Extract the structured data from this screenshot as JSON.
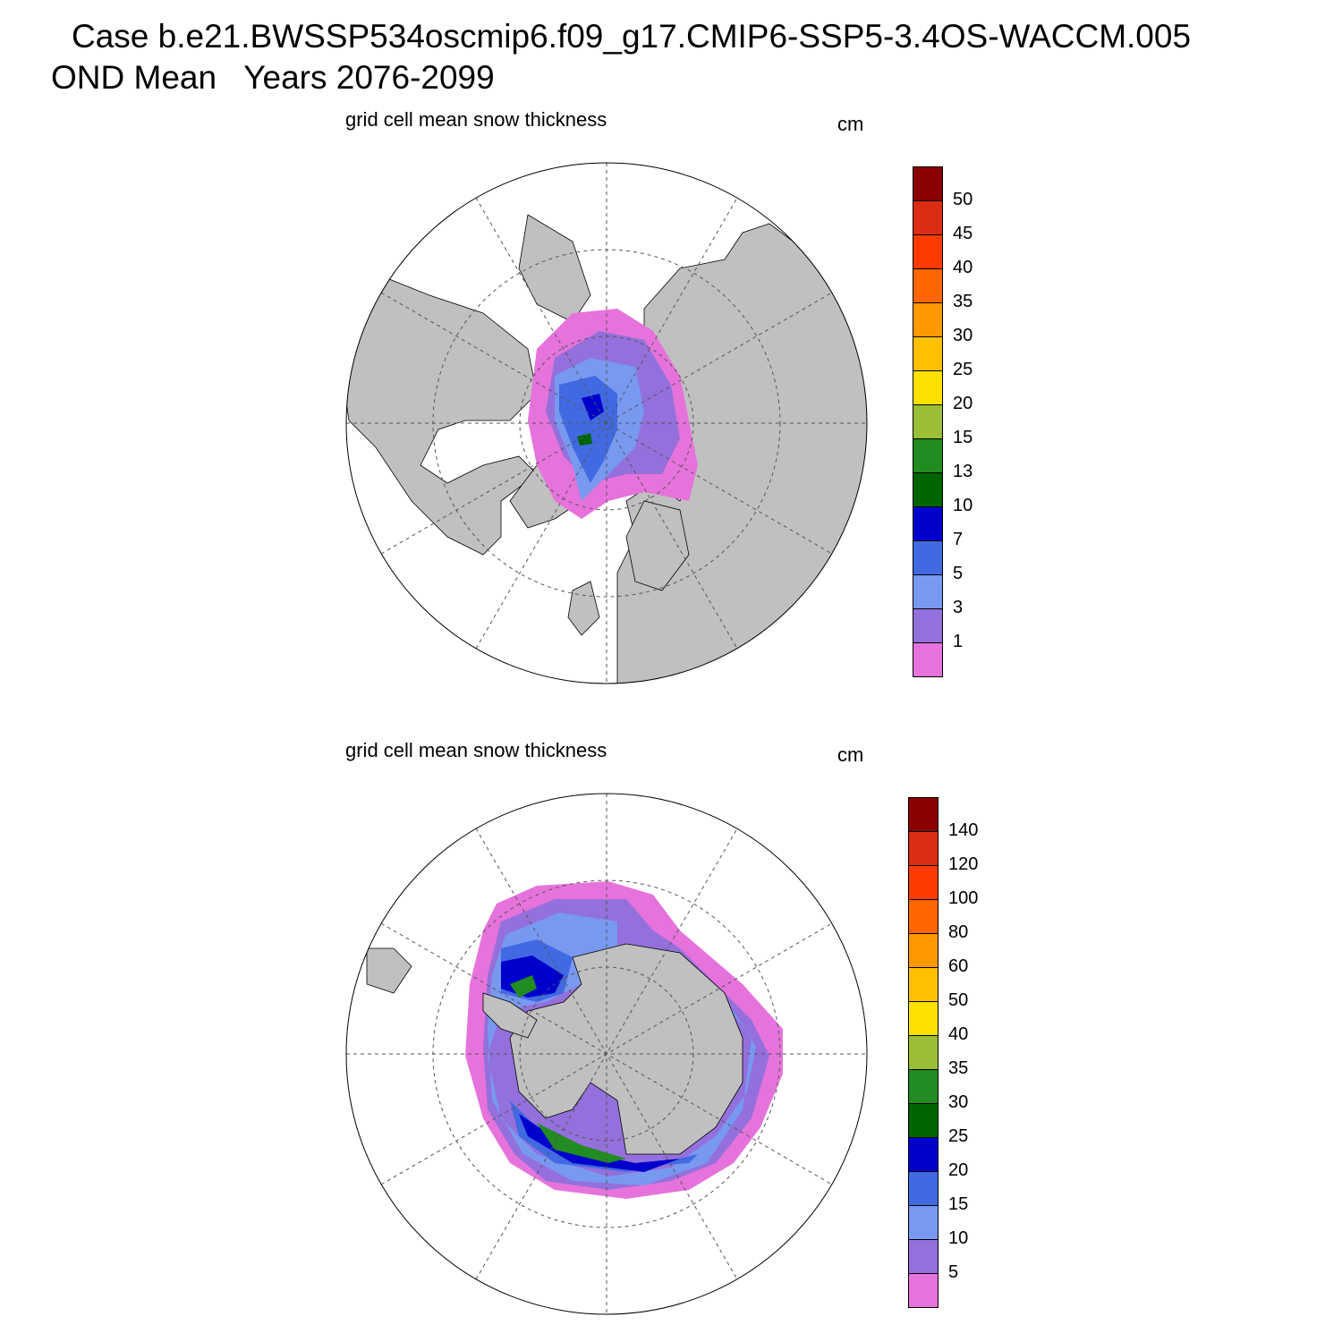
{
  "header": {
    "line1": "Case b.e21.BWSSP534oscmip6.f09_g17.CMIP6-SSP5-3.4OS-WACCM.005",
    "line2": "OND Mean   Years 2076-2099"
  },
  "panels": [
    {
      "id": "north",
      "subtitle": "grid cell mean snow thickness",
      "units": "cm",
      "hemisphere": "north",
      "colorbar": {
        "labels": [
          "50",
          "45",
          "40",
          "35",
          "30",
          "25",
          "20",
          "15",
          "13",
          "10",
          "7",
          "5",
          "3",
          "1"
        ],
        "colors": [
          "#8b0000",
          "#dc2d14",
          "#ff3c00",
          "#ff6600",
          "#ff9900",
          "#ffc000",
          "#ffe100",
          "#9bbe37",
          "#228b22",
          "#006400",
          "#0000cd",
          "#4169e1",
          "#7899f0",
          "#9370db",
          "#e673dc"
        ]
      }
    },
    {
      "id": "south",
      "subtitle": "grid cell mean snow thickness",
      "units": "cm",
      "hemisphere": "south",
      "colorbar": {
        "labels": [
          "140",
          "120",
          "100",
          "80",
          "60",
          "50",
          "40",
          "35",
          "30",
          "25",
          "20",
          "15",
          "10",
          "5"
        ],
        "colors": [
          "#8b0000",
          "#dc2d14",
          "#ff3c00",
          "#ff6600",
          "#ff9900",
          "#ffc000",
          "#ffe100",
          "#9bbe37",
          "#228b22",
          "#006400",
          "#0000cd",
          "#4169e1",
          "#7899f0",
          "#9370db",
          "#e673dc"
        ]
      }
    }
  ],
  "map_colors": {
    "land": "#c0c0c0",
    "ocean": "#ffffff"
  }
}
